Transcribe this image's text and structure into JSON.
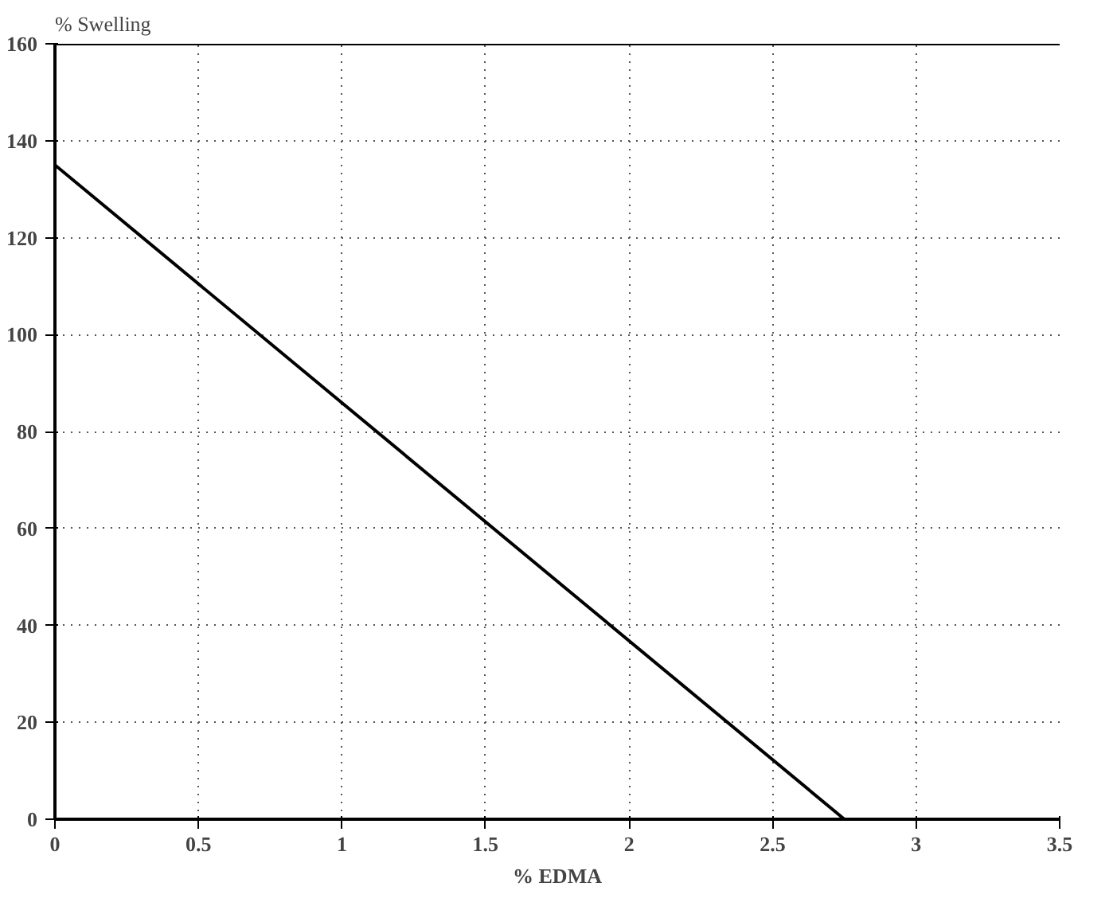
{
  "chart_data": {
    "type": "line",
    "ylabel": "% Swelling",
    "xlabel": "% EDMA",
    "x": [
      0,
      2.75
    ],
    "series": [
      {
        "color": "#000000",
        "values": [
          135,
          0
        ]
      }
    ],
    "xlim": [
      0,
      3.5
    ],
    "xticks": [
      0,
      0.5,
      1,
      1.5,
      2,
      2.5,
      3,
      3.5
    ],
    "ylim": [
      0,
      160
    ],
    "yticks": [
      0,
      20,
      40,
      60,
      80,
      100,
      120,
      140,
      160
    ],
    "grid": true,
    "marker": "none",
    "line_style": "solid"
  }
}
